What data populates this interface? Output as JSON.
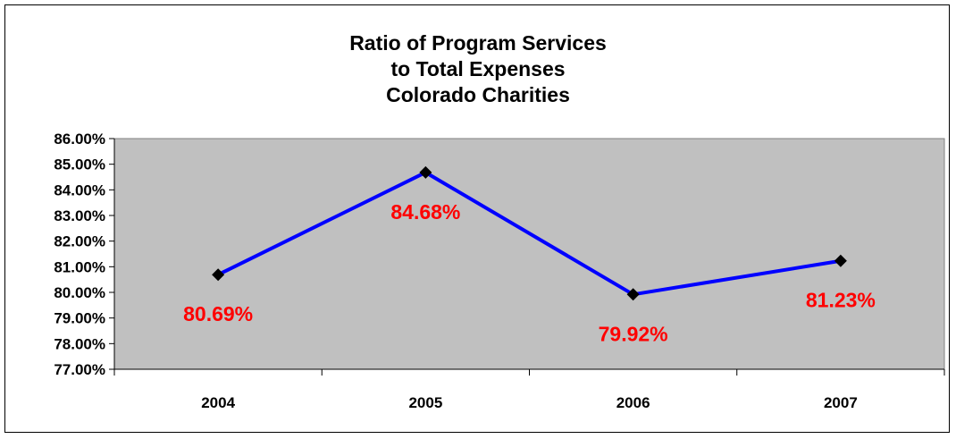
{
  "chart_data": {
    "type": "line",
    "title_lines": [
      "Ratio of Program Services",
      "to Total Expenses",
      "Colorado Charities"
    ],
    "categories": [
      "2004",
      "2005",
      "2006",
      "2007"
    ],
    "values": [
      80.69,
      84.68,
      79.92,
      81.23
    ],
    "data_labels": [
      "80.69%",
      "84.68%",
      "79.92%",
      "81.23%"
    ],
    "ylim": [
      77,
      86
    ],
    "yticks": [
      "77.00%",
      "78.00%",
      "79.00%",
      "80.00%",
      "81.00%",
      "82.00%",
      "83.00%",
      "84.00%",
      "85.00%",
      "86.00%"
    ],
    "xlabel": "",
    "ylabel": "",
    "grid": false,
    "legend": "none",
    "colors": {
      "line": "#0000ff",
      "marker": "#000000",
      "data_label": "#ff0000",
      "plot_background": "#c0c0c0",
      "plot_border": "#808080"
    }
  }
}
